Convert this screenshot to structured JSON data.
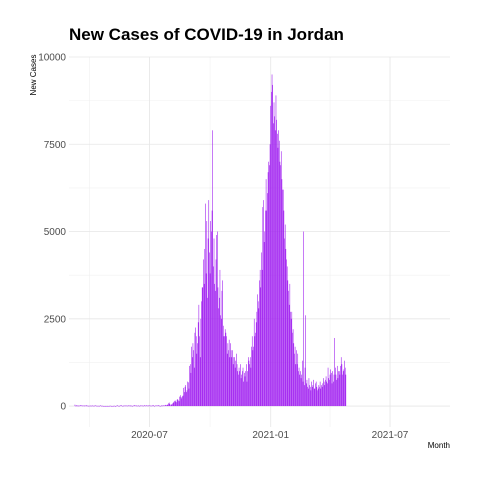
{
  "chart_data": {
    "type": "bar",
    "title": "New Cases of COVID-19 in Jordan",
    "xlabel": "Month",
    "ylabel": "New Cases",
    "x_ticks": [
      "2020-07",
      "2021-01",
      "2021-07"
    ],
    "y_ticks": [
      0,
      2500,
      5000,
      7500,
      10000
    ],
    "ylim": [
      -600,
      10000
    ],
    "xlim": [
      "2020-03-01",
      "2021-09-30"
    ],
    "x_start": "2020-03-10",
    "bar_color": "#a020f0",
    "grid": true,
    "values": [
      40,
      10,
      10,
      30,
      10,
      5,
      20,
      10,
      20,
      20,
      20,
      10,
      15,
      15,
      5,
      20,
      15,
      10,
      25,
      10,
      10,
      5,
      10,
      5,
      15,
      5,
      20,
      10,
      10,
      0,
      15,
      20,
      15,
      5,
      5,
      10,
      5,
      0,
      15,
      20,
      10,
      0,
      10,
      0,
      5,
      0,
      0,
      5,
      0,
      5,
      0,
      0,
      5,
      5,
      10,
      5,
      0,
      0,
      5,
      5,
      10,
      0,
      0,
      10,
      15,
      20,
      5,
      0,
      10,
      20,
      15,
      20,
      5,
      0,
      15,
      15,
      10,
      15,
      15,
      10,
      10,
      20,
      10,
      15,
      20,
      0,
      15,
      0,
      10,
      15,
      25,
      15,
      15,
      20,
      5,
      10,
      10,
      20,
      0,
      10,
      20,
      15,
      10,
      15,
      5,
      20,
      20,
      10,
      15,
      20,
      10,
      20,
      10,
      20,
      15,
      10,
      10,
      10,
      20,
      25,
      10,
      0,
      15,
      15,
      15,
      15,
      15,
      25,
      15,
      0,
      5,
      10,
      25,
      10,
      15,
      20,
      15,
      25,
      35,
      20,
      30,
      50,
      80,
      100,
      60,
      20,
      40,
      50,
      70,
      90,
      120,
      140,
      160,
      130,
      110,
      180,
      200,
      160,
      140,
      270,
      310,
      260,
      220,
      280,
      300,
      520,
      400,
      550,
      600,
      400,
      450,
      700,
      680,
      500,
      1150,
      1200,
      950,
      1700,
      1400,
      1800,
      1600,
      1100,
      2100,
      2250,
      2000,
      1500,
      1800,
      2400,
      2900,
      2000,
      1400,
      2500,
      3000,
      3400,
      3400,
      4200,
      3500,
      4500,
      5800,
      3800,
      5300,
      3100,
      4800,
      5900,
      4400,
      3800,
      5300,
      5000,
      5600,
      7900,
      4000,
      4800,
      3500,
      3300,
      4200,
      4900,
      5000,
      3400,
      2800,
      3100,
      3900,
      2600,
      2500,
      3300,
      3600,
      2300,
      2000,
      2000,
      2200,
      2100,
      2000,
      1500,
      1800,
      1600,
      1900,
      1400,
      1800,
      1600,
      1400,
      1600,
      1200,
      1400,
      1400,
      1100,
      1300,
      1500,
      1200,
      1000,
      900,
      1100,
      1000,
      1200,
      800,
      900,
      1000,
      1100,
      700,
      950,
      850,
      1000,
      1200,
      700,
      1000,
      1400,
      1300,
      1200,
      1400,
      1100,
      1700,
      2000,
      1600,
      1700,
      2500,
      2000,
      2100,
      2400,
      2700,
      3200,
      3000,
      2800,
      3600,
      3900,
      3400,
      4400,
      3900,
      5700,
      5900,
      4700,
      5000,
      5600,
      6500,
      5600,
      6100,
      6700,
      7000,
      6900,
      7500,
      8600,
      9000,
      9500,
      9200,
      8100,
      8700,
      8300,
      7900,
      8900,
      8200,
      7800,
      7400,
      7900,
      7600,
      7000,
      6900,
      7300,
      6500,
      6200,
      6200,
      5600,
      4800,
      5200,
      4500,
      4200,
      4000,
      3600,
      3300,
      2900,
      3500,
      2700,
      2500,
      2700,
      2100,
      2200,
      1800,
      1500,
      1700,
      1200,
      1600,
      1200,
      1500,
      1000,
      1100,
      900,
      1000,
      800,
      900,
      1300,
      700,
      5000,
      600,
      1100,
      2600,
      650,
      750,
      550,
      500,
      800,
      600,
      550,
      450,
      700,
      550,
      600,
      750,
      500,
      500,
      650,
      700,
      550,
      450,
      500,
      600,
      550,
      700,
      500,
      600,
      550,
      650,
      800,
      700,
      600,
      750,
      850,
      700,
      650,
      1100,
      800,
      750,
      900,
      1050,
      950,
      650,
      1000,
      700,
      900,
      1950,
      1100,
      900,
      750,
      1150,
      800,
      1000,
      1000,
      900,
      1150,
      1400,
      1200,
      900,
      1000,
      1050,
      1300,
      1100,
      900
    ]
  }
}
